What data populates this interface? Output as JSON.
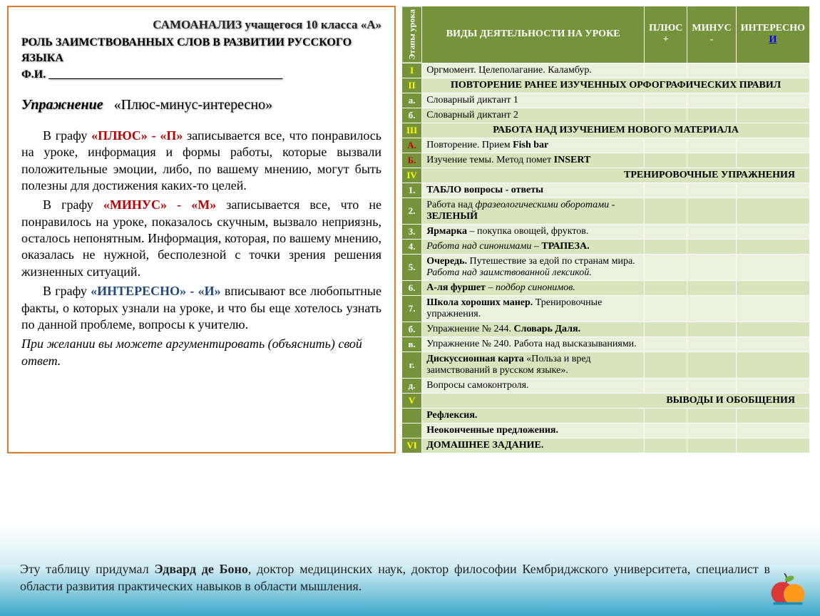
{
  "left": {
    "title1": "САМОАНАЛИЗ   учащегося  10 класса «А»",
    "title2": "РОЛЬ ЗАИМСТВОВАННЫХ СЛОВ В РАЗВИТИИ РУССКОГО ЯЗЫКА",
    "title3": "Ф.И.  _________________________________________",
    "exercise_label": "Упражнение",
    "exercise_name": "«Плюс-минус-интересно»",
    "p1_pre": "В графу ",
    "p1_red": "«ПЛЮС» - «П»",
    "p1_post": " записывается все, что понравилось на уроке, информация и формы работы, которые вызвали положительные эмоции, либо, по вашему мнению, могут быть  полезны для достижения каких-то целей.",
    "p2_pre": "В графу ",
    "p2_red": "«МИНУС» - «М»",
    "p2_post": " записывается все, что не понравилось на уроке, показалось скучным, вызвало неприязнь, осталось непонятным. Информация, которая, по вашему мнению, оказалась не нужной, бесполезной с точки зрения решения жизненных ситуаций.",
    "p3_pre": "В графу ",
    "p3_blue": "«ИНТЕРЕСНО» - «И»",
    "p3_post": " вписывают все любопытные факты, о которых узнали на уроке, и что бы еще хотелось узнать по данной проблеме, вопросы к учителю.",
    "note": "При желании вы можете аргументировать (объяснить)  свой ответ."
  },
  "table": {
    "hdr_stage": "Этапы урока",
    "hdr_activity": "ВИДЫ   ДЕЯТЕЛЬНОСТИ  НА УРОКЕ",
    "hdr_plus": "ПЛЮС",
    "hdr_plus2": "+",
    "hdr_minus": "МИНУС",
    "hdr_minus2": "-",
    "hdr_int": "ИНТЕРЕСНО",
    "hdr_int2": "И",
    "rows": [
      {
        "num": "I",
        "cls": "yellow",
        "text": "Оргмомент. Целеполагание. Каламбур.",
        "type": "row",
        "bg": "row-light"
      },
      {
        "num": "II",
        "cls": "yellow",
        "text": "ПОВТОРЕНИЕ  РАНЕЕ  ИЗУЧЕННЫХ  ОРФОГРАФИЧЕСКИХ ПРАВИЛ",
        "type": "section"
      },
      {
        "num": "а.",
        "cls": "white",
        "text": "Словарный диктант 1",
        "type": "row",
        "bg": "row-light"
      },
      {
        "num": "б.",
        "cls": "white",
        "text": "Словарный диктант 2",
        "type": "row",
        "bg": "row-alt"
      },
      {
        "num": "III",
        "cls": "yellow",
        "text": "РАБОТА  НАД  ИЗУЧЕНИЕМ  НОВОГО  МАТЕРИАЛА",
        "type": "section"
      },
      {
        "num": "А.",
        "cls": "red",
        "html": "Повторение. Прием <b>Fish bar</b>",
        "type": "row",
        "bg": "row-light"
      },
      {
        "num": "Б.",
        "cls": "red",
        "html": "Изучение темы.  Метод помет <b>INSERT</b>",
        "type": "row",
        "bg": "row-alt"
      },
      {
        "num": "IV",
        "cls": "yellow",
        "text": "ТРЕНИРОВОЧНЫЕ   УПРАЖНЕНИЯ",
        "type": "section-right"
      },
      {
        "num": "1.",
        "cls": "white",
        "html": "<b>ТАБЛО  вопросы - ответы</b>",
        "type": "row",
        "bg": "row-light"
      },
      {
        "num": "2.",
        "cls": "white",
        "html": "Работа над <i>фразеологическими оборотами</i> - <b>ЗЕЛЕНЫЙ</b>",
        "type": "row",
        "bg": "row-alt"
      },
      {
        "num": "3.",
        "cls": "white",
        "html": "<b>Ярмарка</b> – покупка овощей, фруктов.",
        "type": "row",
        "bg": "row-light"
      },
      {
        "num": "4.",
        "cls": "white",
        "html": "<i>Работа над синонимами</i> – <b>ТРАПЕЗА.</b>",
        "type": "row",
        "bg": "row-alt"
      },
      {
        "num": "5.",
        "cls": "white",
        "html": "<b>Очередь.</b> Путешествие за едой по странам мира. <i>Работа над заимствованной лексикой.</i>",
        "type": "row",
        "bg": "row-light"
      },
      {
        "num": "6.",
        "cls": "white",
        "html": "<b>А-ля фуршет</b> – <i>подбор синонимов.</i>",
        "type": "row",
        "bg": "row-alt"
      },
      {
        "num": "7.",
        "cls": "white",
        "html": "<b>Школа хороших манер.</b> Тренировочные упражнения.",
        "type": "row",
        "bg": "row-light"
      },
      {
        "num": "б.",
        "cls": "white",
        "html": "Упражнение № 244. <b>Словарь Даля.</b>",
        "type": "row",
        "bg": "row-alt"
      },
      {
        "num": "в.",
        "cls": "white",
        "html": "Упражнение № 240. Работа над высказываниями.",
        "type": "row",
        "bg": "row-light"
      },
      {
        "num": "г.",
        "cls": "white",
        "html": "<b>Дискуссионная карта</b> «Польза и вред заимствований в русском языке».",
        "type": "row",
        "bg": "row-alt"
      },
      {
        "num": "д.",
        "cls": "white",
        "html": "Вопросы самоконтроля.",
        "type": "row",
        "bg": "row-light"
      },
      {
        "num": "V",
        "cls": "yellow",
        "text": "ВЫВОДЫ И ОБОБЩЕНИЯ",
        "type": "section-right"
      },
      {
        "num": "",
        "cls": "white",
        "html": "<b>Рефлексия.</b>",
        "type": "row",
        "bg": "row-alt"
      },
      {
        "num": "",
        "cls": "white",
        "html": "<b>Неоконченные предложения.</b>",
        "type": "row",
        "bg": "row-light"
      },
      {
        "num": "VI",
        "cls": "yellow",
        "html": "<b>ДОМАШНЕЕ  ЗАДАНИЕ.</b>",
        "type": "row",
        "bg": "row-alt"
      }
    ]
  },
  "footer": {
    "pre": "Эту таблицу придумал ",
    "author": "Эдвард де Боно",
    "post": ", доктор медицинских наук, доктор философии Кембриджского университета, специалист в области развития практических навыков в области мышления."
  },
  "colors": {
    "dark_green": "#76933c",
    "light_green": "#d8e4bc",
    "lighter_green": "#ebf1de",
    "orange_border": "#e07b2e",
    "red_text": "#c00000",
    "blue_text": "#1f497d"
  }
}
